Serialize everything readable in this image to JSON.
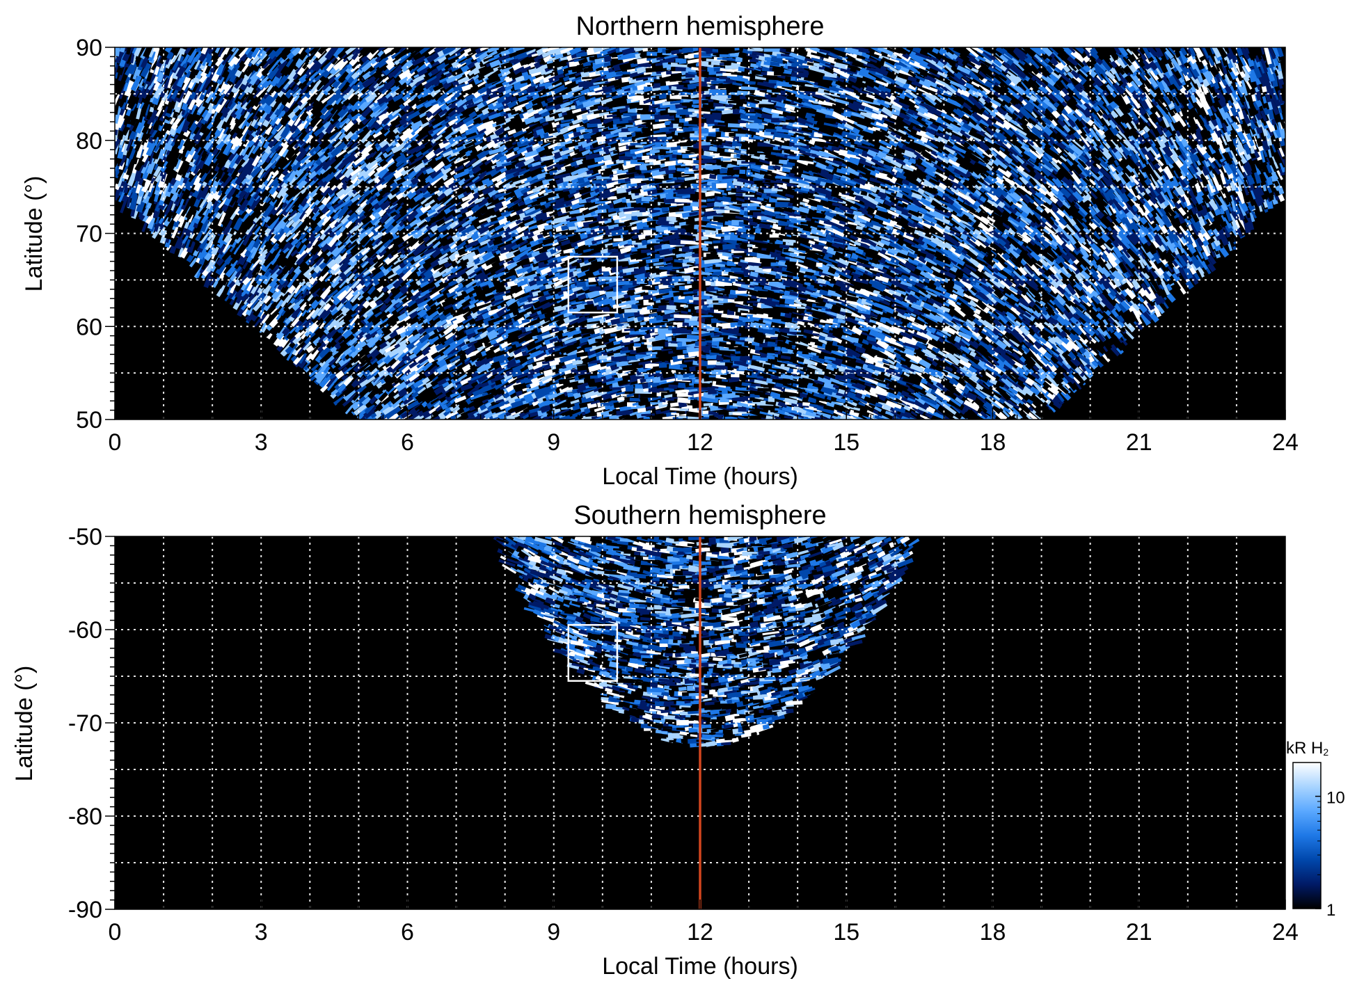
{
  "chart_data": [
    {
      "type": "heatmap",
      "title": "Northern hemisphere",
      "xlabel": "Local Time (hours)",
      "ylabel": "Latitude (°)",
      "xlim": [
        0,
        24
      ],
      "ylim": [
        50,
        90
      ],
      "xticks": [
        "0",
        "3",
        "6",
        "9",
        "12",
        "15",
        "18",
        "21",
        "24"
      ],
      "yticks": [
        "50",
        "60",
        "70",
        "80",
        "90"
      ],
      "grid": true,
      "reference_line": {
        "x": 12,
        "color": "#d2461e"
      },
      "highlight_box": {
        "x": [
          9.3,
          10.3
        ],
        "y": [
          61.5,
          67.5
        ]
      },
      "coverage": "observed region spans ~5–19 h at 50°, widening to all local times above ~74°",
      "colorscale": "log, 1–20 kR H2 (black → dark blue → light blue → white)"
    },
    {
      "type": "heatmap",
      "title": "Southern hemisphere",
      "xlabel": "Local Time (hours)",
      "ylabel": "Latitude (°)",
      "xlim": [
        0,
        24
      ],
      "ylim": [
        -90,
        -50
      ],
      "xticks": [
        "0",
        "3",
        "6",
        "9",
        "12",
        "15",
        "18",
        "21",
        "24"
      ],
      "yticks": [
        "-50",
        "-60",
        "-70",
        "-80",
        "-90"
      ],
      "grid": true,
      "reference_line": {
        "x": 12,
        "color": "#d2461e"
      },
      "highlight_box": {
        "x": [
          9.3,
          10.3
        ],
        "y": [
          -65.5,
          -59.5
        ]
      },
      "coverage": "observed region spans ~7.7–16.5 h at -50°, narrowing to ~12 h near -72°",
      "colorscale": "log, 1–20 kR H2"
    }
  ],
  "colorbar": {
    "title": "kR H",
    "subscript": "2",
    "ticks": [
      "10",
      "1"
    ],
    "tick_values": [
      10,
      1
    ],
    "range": [
      1,
      20
    ],
    "scale": "log",
    "colors": [
      "#000000",
      "#001a66",
      "#0047ab",
      "#1e78e6",
      "#5aa8ff",
      "#a8d4ff",
      "#ffffff"
    ]
  }
}
